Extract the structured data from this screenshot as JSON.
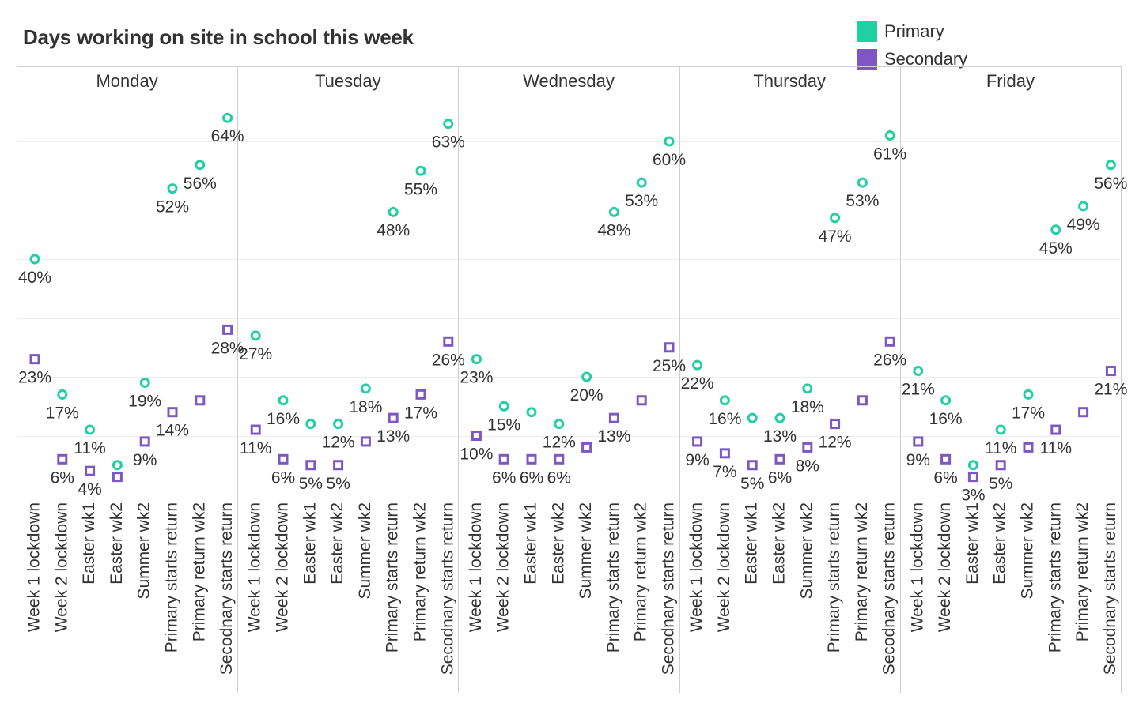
{
  "chart_data": {
    "type": "scatter",
    "title": "Days working on site in school this week",
    "panels": [
      "Monday",
      "Tuesday",
      "Wednesday",
      "Thursday",
      "Friday"
    ],
    "categories": [
      "Week 1 lockdown",
      "Week 2 lockdown",
      "Easter wk1",
      "Easter wk2",
      "Summer wk2",
      "Primary starts return",
      "Primary return wk2",
      "Secodnary starts return"
    ],
    "ylim": [
      0,
      68
    ],
    "grid": true,
    "legend_position": "top-right",
    "series": [
      {
        "name": "Primary",
        "marker": "circle",
        "color": "#1fd0a4",
        "values": {
          "Monday": [
            40,
            17,
            11,
            5,
            19,
            52,
            56,
            64
          ],
          "Tuesday": [
            27,
            16,
            12,
            12,
            18,
            48,
            55,
            63
          ],
          "Wednesday": [
            23,
            15,
            14,
            12,
            20,
            48,
            53,
            60
          ],
          "Thursday": [
            22,
            16,
            13,
            13,
            18,
            47,
            53,
            61
          ],
          "Friday": [
            21,
            16,
            5,
            11,
            17,
            45,
            49,
            56
          ]
        },
        "labels": {
          "Monday": [
            "40%",
            "17%",
            "11%",
            null,
            "19%",
            "52%",
            "56%",
            "64%"
          ],
          "Tuesday": [
            "27%",
            "16%",
            null,
            "12%",
            "18%",
            "48%",
            "55%",
            "63%"
          ],
          "Wednesday": [
            "23%",
            "15%",
            null,
            "12%",
            "20%",
            "48%",
            "53%",
            "60%"
          ],
          "Thursday": [
            "22%",
            "16%",
            null,
            "13%",
            "18%",
            "47%",
            "53%",
            "61%"
          ],
          "Friday": [
            "21%",
            "16%",
            null,
            "11%",
            "17%",
            "45%",
            "49%",
            "56%"
          ]
        }
      },
      {
        "name": "Secondary",
        "marker": "square",
        "color": "#7e57c2",
        "values": {
          "Monday": [
            23,
            6,
            4,
            3,
            9,
            14,
            16,
            28
          ],
          "Tuesday": [
            11,
            6,
            5,
            5,
            9,
            13,
            17,
            26
          ],
          "Wednesday": [
            10,
            6,
            6,
            6,
            8,
            13,
            16,
            25
          ],
          "Thursday": [
            9,
            7,
            5,
            6,
            8,
            12,
            16,
            26
          ],
          "Friday": [
            9,
            6,
            3,
            5,
            8,
            11,
            14,
            21
          ]
        },
        "labels": {
          "Monday": [
            "23%",
            "6%",
            "4%",
            null,
            "9%",
            "14%",
            null,
            "28%"
          ],
          "Tuesday": [
            "11%",
            "6%",
            "5%",
            "5%",
            null,
            "13%",
            "17%",
            "26%"
          ],
          "Wednesday": [
            "10%",
            "6%",
            "6%",
            "6%",
            null,
            "13%",
            null,
            "25%"
          ],
          "Thursday": [
            "9%",
            "7%",
            "5%",
            "6%",
            "8%",
            "12%",
            null,
            "26%"
          ],
          "Friday": [
            "9%",
            "6%",
            "3%",
            "5%",
            null,
            "11%",
            null,
            "21%"
          ]
        }
      }
    ]
  }
}
